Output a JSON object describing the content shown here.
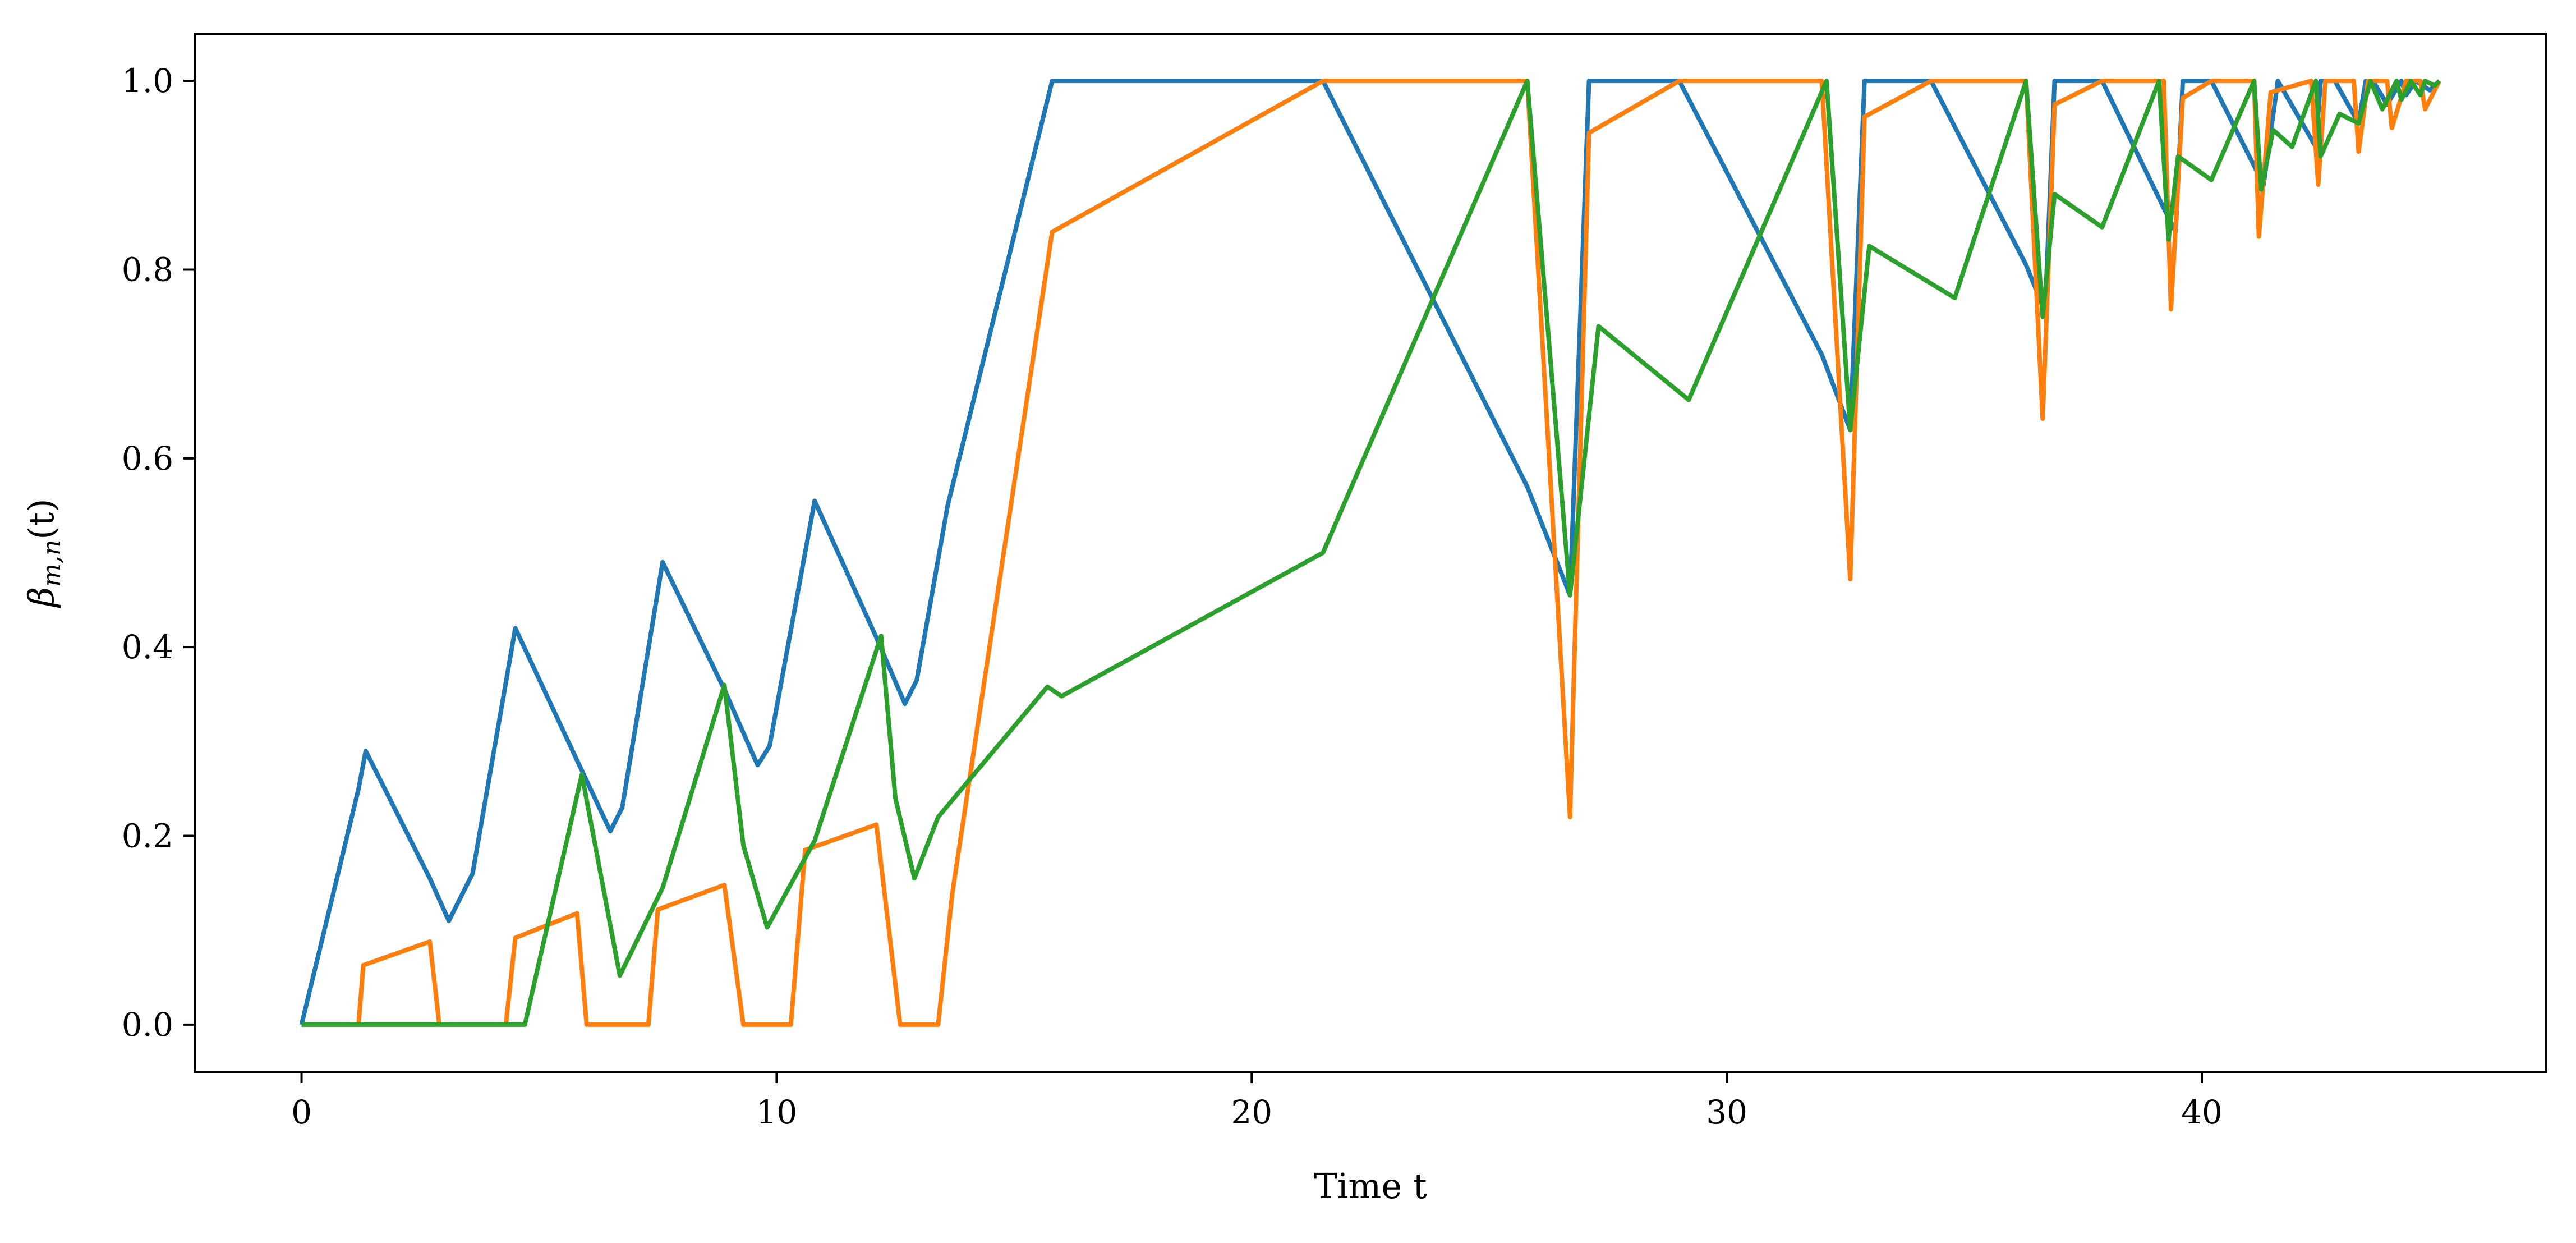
{
  "chart_data": {
    "type": "line",
    "title": "",
    "xlabel": "Time t",
    "ylabel": "β_{m,n}(t)",
    "xlim": [
      -2.25,
      47.25
    ],
    "ylim": [
      -0.05,
      1.05
    ],
    "xticks": [
      0,
      10,
      20,
      30,
      40
    ],
    "yticks": [
      0.0,
      0.2,
      0.4,
      0.6,
      0.8,
      1.0
    ],
    "xtick_labels": [
      "0",
      "10",
      "20",
      "30",
      "40"
    ],
    "ytick_labels": [
      "0.0",
      "0.2",
      "0.4",
      "0.6",
      "0.8",
      "1.0"
    ],
    "grid": false,
    "legend": "none",
    "series": [
      {
        "color": "#1f77b4",
        "x": [
          0,
          1.2,
          1.35,
          2.7,
          3.1,
          3.6,
          4.5,
          5.8,
          6.5,
          6.75,
          7.6,
          8.9,
          9.6,
          9.85,
          10.8,
          12.1,
          12.7,
          12.95,
          13.6,
          15.8,
          21.5,
          25.8,
          26.7,
          27.1,
          29.0,
          32.0,
          32.6,
          32.9,
          34.3,
          36.3,
          36.7,
          36.9,
          37.9,
          39.2,
          39.45,
          39.6,
          40.2,
          41.1,
          41.3,
          41.6,
          42.4,
          42.5,
          42.8,
          43.3,
          43.45,
          43.6,
          43.9,
          44.2,
          44.3,
          44.5,
          44.8,
          45.0
        ],
        "y": [
          0.0,
          0.25,
          0.29,
          0.155,
          0.11,
          0.16,
          0.42,
          0.28,
          0.205,
          0.23,
          0.49,
          0.355,
          0.275,
          0.295,
          0.555,
          0.41,
          0.34,
          0.365,
          0.55,
          1.0,
          1.0,
          0.57,
          0.455,
          1.0,
          1.0,
          0.71,
          0.63,
          1.0,
          1.0,
          0.805,
          0.755,
          1.0,
          1.0,
          0.865,
          0.84,
          1.0,
          1.0,
          0.91,
          0.89,
          1.0,
          0.93,
          1.0,
          1.0,
          0.955,
          1.0,
          1.0,
          0.975,
          1.0,
          0.985,
          1.0,
          0.99,
          1.0
        ]
      },
      {
        "color": "#ff7f0e",
        "x": [
          0,
          1.2,
          1.3,
          2.7,
          2.9,
          4.3,
          4.5,
          5.8,
          6.0,
          7.3,
          7.5,
          8.9,
          9.3,
          10.3,
          10.6,
          12.1,
          12.6,
          13.4,
          13.7,
          15.8,
          21.5,
          25.8,
          26.7,
          27.1,
          29.0,
          32.0,
          32.6,
          32.9,
          34.3,
          36.3,
          36.65,
          36.9,
          37.9,
          39.2,
          39.35,
          39.6,
          40.2,
          41.1,
          41.2,
          41.45,
          42.3,
          42.45,
          42.6,
          43.2,
          43.3,
          43.5,
          43.9,
          44.0,
          44.3,
          44.6,
          44.7,
          45.0
        ],
        "y": [
          0.0,
          0.0,
          0.063,
          0.088,
          0.0,
          0.0,
          0.092,
          0.118,
          0.0,
          0.0,
          0.122,
          0.148,
          0.0,
          0.0,
          0.185,
          0.212,
          0.0,
          0.0,
          0.14,
          0.84,
          1.0,
          1.0,
          0.22,
          0.945,
          1.0,
          1.0,
          0.472,
          0.962,
          1.0,
          1.0,
          0.642,
          0.975,
          1.0,
          1.0,
          0.758,
          0.982,
          1.0,
          1.0,
          0.835,
          0.988,
          1.0,
          0.89,
          1.0,
          1.0,
          0.925,
          1.0,
          1.0,
          0.95,
          1.0,
          1.0,
          0.97,
          1.0
        ]
      },
      {
        "color": "#2ca02c",
        "x": [
          0,
          4.7,
          5.9,
          6.7,
          7.6,
          8.9,
          9.3,
          9.8,
          10.8,
          12.2,
          12.5,
          12.9,
          13.4,
          15.7,
          16.0,
          21.5,
          25.8,
          26.7,
          27.3,
          29.2,
          32.1,
          32.6,
          33.0,
          34.8,
          36.3,
          36.65,
          36.9,
          37.9,
          39.1,
          39.3,
          39.5,
          40.2,
          41.1,
          41.25,
          41.5,
          41.9,
          42.4,
          42.5,
          42.9,
          43.3,
          43.55,
          43.8,
          44.1,
          44.2,
          44.4,
          44.6,
          44.7,
          44.9,
          45.0
        ],
        "y": [
          0.0,
          0.0,
          0.265,
          0.052,
          0.145,
          0.36,
          0.19,
          0.103,
          0.195,
          0.412,
          0.24,
          0.155,
          0.22,
          0.358,
          0.348,
          0.5,
          1.0,
          0.455,
          0.74,
          0.662,
          1.0,
          0.63,
          0.825,
          0.77,
          1.0,
          0.75,
          0.88,
          0.845,
          1.0,
          0.832,
          0.92,
          0.895,
          1.0,
          0.885,
          0.948,
          0.93,
          1.0,
          0.92,
          0.965,
          0.955,
          1.0,
          0.97,
          1.0,
          0.98,
          1.0,
          0.985,
          1.0,
          0.995,
          1.0
        ]
      }
    ]
  }
}
